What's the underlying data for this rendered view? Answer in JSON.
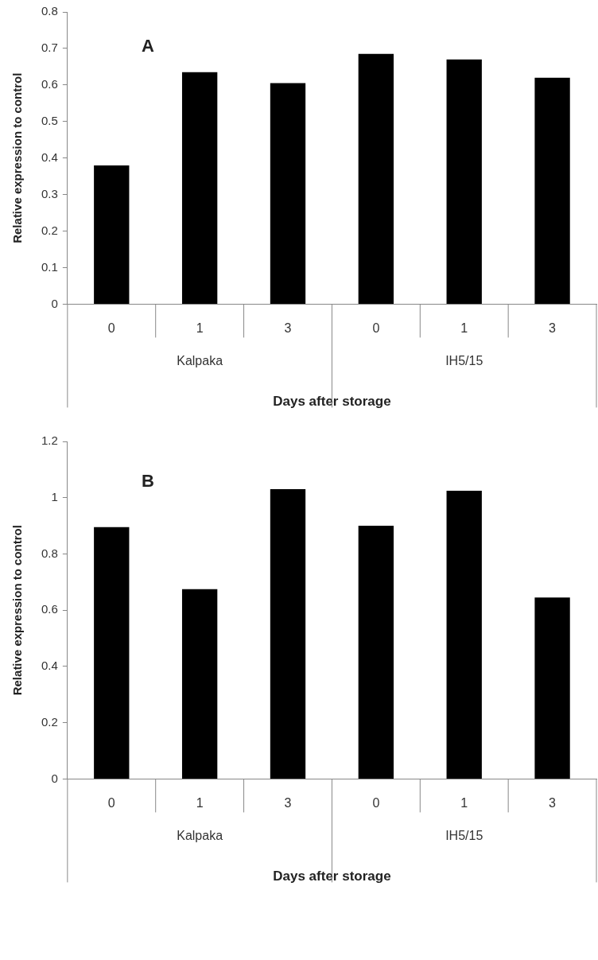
{
  "chart_data": [
    {
      "type": "bar",
      "title": "A",
      "xlabel": "Days after storage",
      "ylabel": "Relative expression to control",
      "categories": [
        "0",
        "1",
        "3",
        "0",
        "1",
        "3"
      ],
      "values": [
        0.38,
        0.635,
        0.605,
        0.685,
        0.67,
        0.62
      ],
      "color": "#000000",
      "ylim": [
        0,
        0.8
      ],
      "yticks": [
        0,
        0.1,
        0.2,
        0.3,
        0.4,
        0.5,
        0.6,
        0.7,
        0.8
      ],
      "grid": false,
      "legend": false,
      "annotations": [
        "Kalpaka",
        "IH5/15"
      ]
    },
    {
      "type": "bar",
      "title": "B",
      "xlabel": "Days after storage",
      "ylabel": "Relative expression to control",
      "categories": [
        "0",
        "1",
        "3",
        "0",
        "1",
        "3"
      ],
      "values": [
        0.895,
        0.675,
        1.03,
        0.9,
        1.025,
        0.645
      ],
      "color": "#000000",
      "ylim": [
        0,
        1.2
      ],
      "yticks": [
        0,
        0.2,
        0.4,
        0.6,
        0.8,
        1,
        1.2
      ],
      "grid": false,
      "legend": false,
      "annotations": [
        "Kalpaka",
        "IH5/15"
      ]
    }
  ]
}
